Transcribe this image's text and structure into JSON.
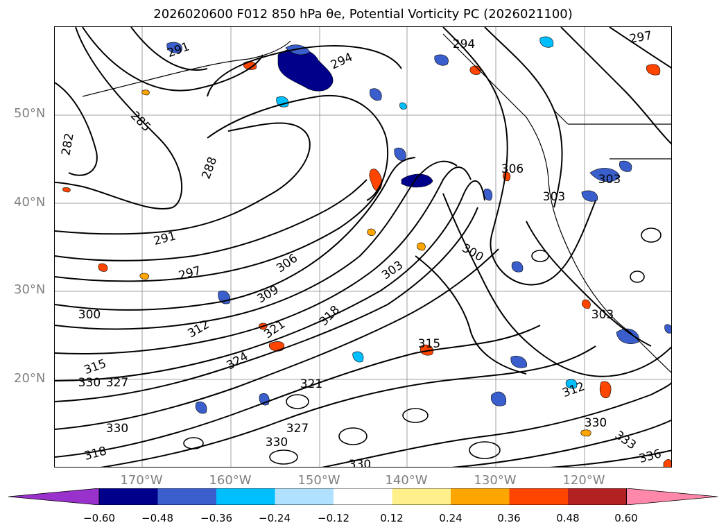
{
  "title": "2026020600 F012 850 hPa θe, Potential Vorticity PC (2026021100)",
  "lat_labels": [
    "50°N",
    "40°N",
    "30°N",
    "20°N"
  ],
  "lon_labels": [
    "170°W",
    "160°W",
    "150°W",
    "140°W",
    "130°W",
    "120°W"
  ],
  "colorbar": {
    "colors": [
      "#9932cc",
      "#00008b",
      "#3a5fcd",
      "#00bfff",
      "#b0e2ff",
      "#ffffff",
      "#fff08c",
      "#ffa500",
      "#ff4500",
      "#b22222",
      "#ff88aa"
    ],
    "tick_labels": [
      "−0.60",
      "−0.48",
      "−0.36",
      "−0.24",
      "−0.12",
      "0.12",
      "0.24",
      "0.36",
      "0.48",
      "0.60"
    ]
  },
  "contour_labels": [
    "291",
    "294",
    "294",
    "297",
    "285",
    "282",
    "288",
    "291",
    "297",
    "300",
    "306",
    "309",
    "303",
    "300",
    "306",
    "303",
    "303",
    "312",
    "315",
    "318",
    "321",
    "321",
    "315",
    "330",
    "327",
    "327",
    "330",
    "330",
    "318",
    "324",
    "330",
    "312",
    "330",
    "333",
    "336",
    "303"
  ],
  "map_style": {
    "grid_color": "#a0a0a0",
    "coast_color": "#000000",
    "contour_color": "#000000"
  }
}
